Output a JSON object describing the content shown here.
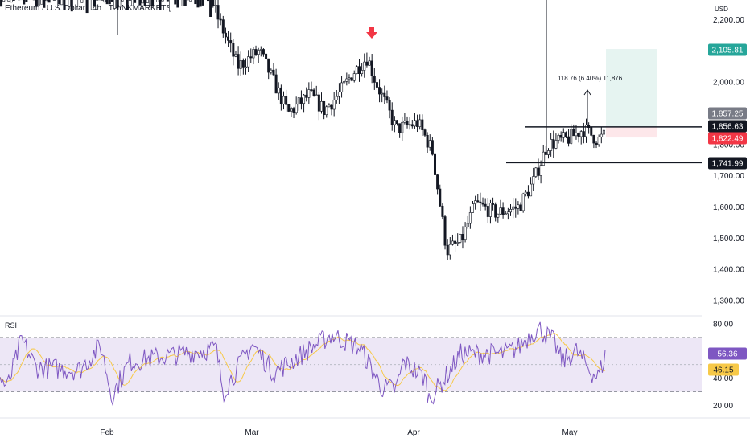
{
  "chart_title": "Ethereum / U.S. Dollar · 4h · THINKMARKETS",
  "currency": "USD",
  "colors": {
    "candle": "#131722",
    "down_arrow": "#f23645",
    "rsi_line": "#7e57c2",
    "rsi_ma": "#f7c948",
    "rsi_band": "#ede7f6",
    "target_zone": "#e6f4f1",
    "stop_zone": "#fde7ea",
    "tag_target": "#26a69a",
    "tag_entry": "#f23645",
    "tag_gray": "#787b86",
    "tag_dark": "#131722"
  },
  "chart_data": [
    {
      "type": "candlestick",
      "title": "Ethereum / U.S. Dollar · 4h · THINKMARKETS",
      "price_axis": {
        "ticks": [
          "2,200.00",
          "2,000.00",
          "1,900.00",
          "1,800.00",
          "1,700.00",
          "1,600.00",
          "1,500.00",
          "1,400.00",
          "1,300.00"
        ],
        "tick_values": [
          2200,
          2000,
          1900,
          1800,
          1700,
          1600,
          1500,
          1400,
          1300
        ],
        "range": [
          1260,
          2250
        ]
      },
      "time_axis": {
        "labels": [
          "Feb",
          "Mar",
          "Apr",
          "May"
        ]
      },
      "price_path": [
        {
          "t": 0.0,
          "p": 2500
        },
        {
          "t": 0.08,
          "p": 2470
        },
        {
          "t": 0.2,
          "p": 2440
        },
        {
          "t": 0.27,
          "p": 2430
        },
        {
          "t": 0.3,
          "p": 2220
        },
        {
          "t": 0.33,
          "p": 2050
        },
        {
          "t": 0.36,
          "p": 2100
        },
        {
          "t": 0.4,
          "p": 1900
        },
        {
          "t": 0.43,
          "p": 1960
        },
        {
          "t": 0.45,
          "p": 1910
        },
        {
          "t": 0.47,
          "p": 1960
        },
        {
          "t": 0.49,
          "p": 2030
        },
        {
          "t": 0.51,
          "p": 2080
        },
        {
          "t": 0.52,
          "p": 2010
        },
        {
          "t": 0.55,
          "p": 1850
        },
        {
          "t": 0.58,
          "p": 1870
        },
        {
          "t": 0.6,
          "p": 1780
        },
        {
          "t": 0.62,
          "p": 1460
        },
        {
          "t": 0.64,
          "p": 1490
        },
        {
          "t": 0.66,
          "p": 1610
        },
        {
          "t": 0.69,
          "p": 1580
        },
        {
          "t": 0.72,
          "p": 1600
        },
        {
          "t": 0.74,
          "p": 1680
        },
        {
          "t": 0.76,
          "p": 1800
        },
        {
          "t": 0.79,
          "p": 1820
        },
        {
          "t": 0.81,
          "p": 1850
        },
        {
          "t": 0.83,
          "p": 1815
        },
        {
          "t": 0.84,
          "p": 1830
        }
      ],
      "annotations": {
        "down_arrow_marker": "red down arrow above the March peak",
        "measure_label": "118.76 (6.40%) 11,876",
        "resistance_line": 1856.63,
        "support_line": 1741.99,
        "target_zone": [
          1856.63,
          2105.81
        ],
        "stop_zone": [
          1822.49,
          1856.63
        ]
      },
      "price_tags": [
        {
          "label": "2,105.81",
          "value": 2105.81,
          "color": "#26a69a"
        },
        {
          "label": "1,857.25",
          "value": 1857.25,
          "color": "#787b86"
        },
        {
          "label": "1,856.63",
          "value": 1856.63,
          "color": "#131722"
        },
        {
          "label": "1,822.49",
          "value": 1822.49,
          "color": "#f23645"
        },
        {
          "label": "1,741.99",
          "value": 1741.99,
          "color": "#131722"
        }
      ]
    },
    {
      "type": "line",
      "title": "RSI",
      "y_ticks": [
        "80.00",
        "40.00",
        "20.00"
      ],
      "y_tick_values": [
        80,
        40,
        20
      ],
      "range": [
        17,
        85
      ],
      "band": [
        30,
        70
      ],
      "midline": 50,
      "series": [
        {
          "name": "RSI",
          "last": 56.36,
          "last_label": "56.36",
          "color": "#7e57c2"
        },
        {
          "name": "",
          "last": 46.15,
          "last_label": "46.15",
          "color": "#f7c948"
        }
      ],
      "rsi_path": [
        {
          "t": 0.0,
          "v": 40
        },
        {
          "t": 0.01,
          "v": 33
        },
        {
          "t": 0.03,
          "v": 68
        },
        {
          "t": 0.05,
          "v": 48
        },
        {
          "t": 0.11,
          "v": 46
        },
        {
          "t": 0.14,
          "v": 64
        },
        {
          "t": 0.155,
          "v": 27
        },
        {
          "t": 0.18,
          "v": 52
        },
        {
          "t": 0.3,
          "v": 62
        },
        {
          "t": 0.31,
          "v": 30
        },
        {
          "t": 0.35,
          "v": 65
        },
        {
          "t": 0.38,
          "v": 44
        },
        {
          "t": 0.46,
          "v": 72
        },
        {
          "t": 0.5,
          "v": 62
        },
        {
          "t": 0.53,
          "v": 33
        },
        {
          "t": 0.55,
          "v": 32
        },
        {
          "t": 0.56,
          "v": 52
        },
        {
          "t": 0.59,
          "v": 40
        },
        {
          "t": 0.595,
          "v": 25
        },
        {
          "t": 0.61,
          "v": 34
        },
        {
          "t": 0.64,
          "v": 58
        },
        {
          "t": 0.7,
          "v": 58
        },
        {
          "t": 0.72,
          "v": 63
        },
        {
          "t": 0.74,
          "v": 74
        },
        {
          "t": 0.75,
          "v": 76
        },
        {
          "t": 0.77,
          "v": 66
        },
        {
          "t": 0.78,
          "v": 52
        },
        {
          "t": 0.8,
          "v": 60
        },
        {
          "t": 0.82,
          "v": 45
        },
        {
          "t": 0.83,
          "v": 41
        },
        {
          "t": 0.84,
          "v": 56
        }
      ]
    }
  ]
}
